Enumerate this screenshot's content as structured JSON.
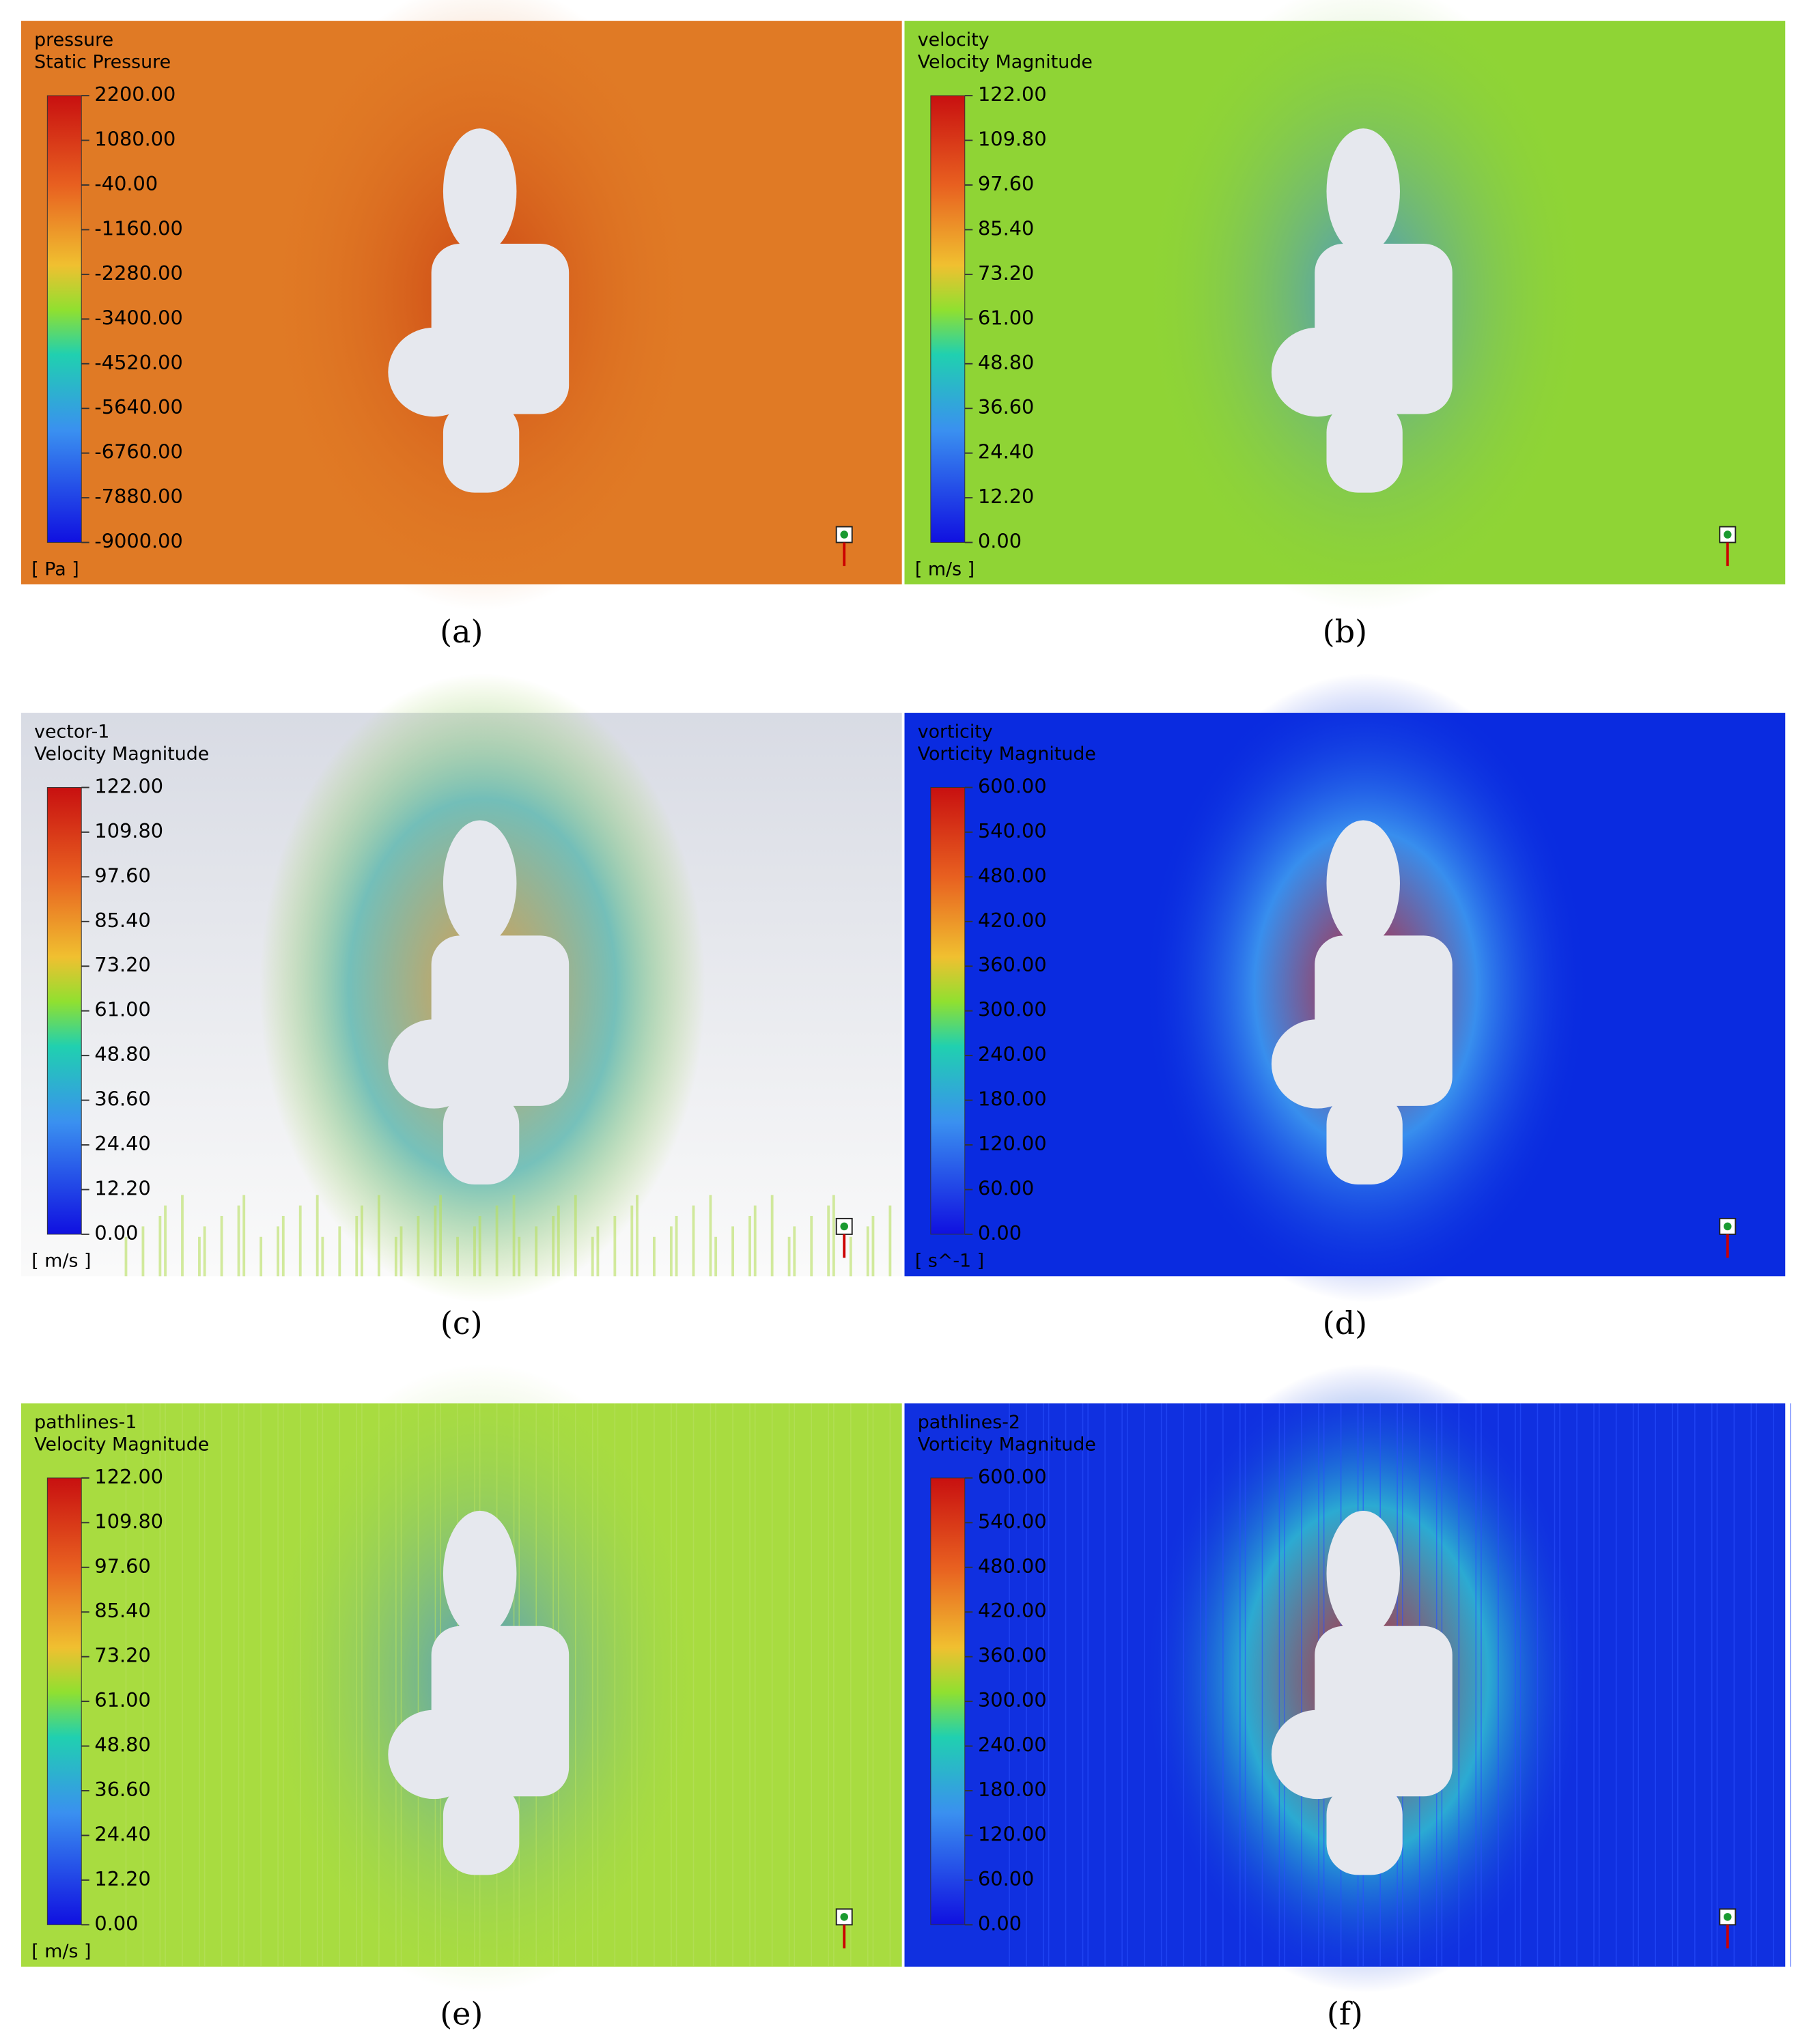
{
  "panels": [
    {
      "label": "(a)",
      "title": [
        "pressure",
        "Static Pressure"
      ],
      "ticks": [
        "2200.00",
        "1080.00",
        "-40.00",
        "-1160.00",
        "-2280.00",
        "-3400.00",
        "-4520.00",
        "-5640.00",
        "-6760.00",
        "-7880.00",
        "-9000.00"
      ],
      "unit": "[ Pa ]"
    },
    {
      "label": "(b)",
      "title": [
        "velocity",
        "Velocity Magnitude"
      ],
      "ticks": [
        "122.00",
        "109.80",
        "97.60",
        "85.40",
        "73.20",
        "61.00",
        "48.80",
        "36.60",
        "24.40",
        "12.20",
        "0.00"
      ],
      "unit": "[ m/s ]"
    },
    {
      "label": "(c)",
      "title": [
        "vector-1",
        "Velocity Magnitude"
      ],
      "ticks": [
        "122.00",
        "109.80",
        "97.60",
        "85.40",
        "73.20",
        "61.00",
        "48.80",
        "36.60",
        "24.40",
        "12.20",
        "0.00"
      ],
      "unit": "[ m/s ]"
    },
    {
      "label": "(d)",
      "title": [
        "vorticity",
        "Vorticity Magnitude"
      ],
      "ticks": [
        "600.00",
        "540.00",
        "480.00",
        "420.00",
        "360.00",
        "300.00",
        "240.00",
        "180.00",
        "120.00",
        "60.00",
        "0.00"
      ],
      "unit": "[ s^-1 ]"
    },
    {
      "label": "(e)",
      "title": [
        "pathlines-1",
        "Velocity Magnitude"
      ],
      "ticks": [
        "122.00",
        "109.80",
        "97.60",
        "85.40",
        "73.20",
        "61.00",
        "48.80",
        "36.60",
        "24.40",
        "12.20",
        "0.00"
      ],
      "unit": "[ m/s ]"
    },
    {
      "label": "(f)",
      "title": [
        "pathlines-2",
        "Vorticity Magnitude"
      ],
      "ticks": [
        "600.00",
        "540.00",
        "480.00",
        "420.00",
        "360.00",
        "300.00",
        "240.00",
        "180.00",
        "120.00",
        "60.00",
        "0.00"
      ]
    }
  ]
}
